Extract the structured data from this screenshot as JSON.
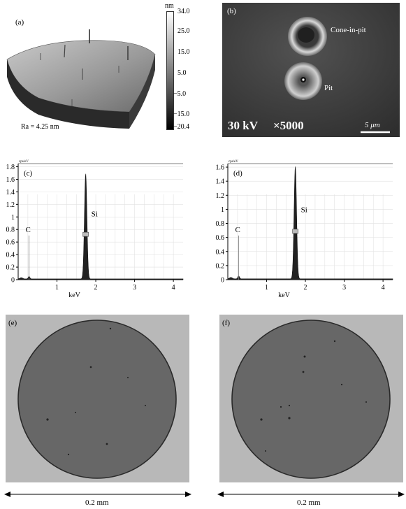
{
  "panels": {
    "a": {
      "label": "(a)",
      "ra": "Ra = 4.25 nm",
      "colorbar": {
        "unit": "nm",
        "ticks": [
          "34.0",
          "25.0",
          "15.0",
          "5.0",
          "−5.0",
          "−15.0",
          "−20.4"
        ]
      }
    },
    "b": {
      "label": "(b)",
      "cone_label": "Cone-in-pit",
      "pit_label": "Pit",
      "kv": "30 kV",
      "mag": "×5000",
      "scalebar": "5 μm"
    },
    "e": {
      "label": "(e)",
      "scale": "0.2 mm"
    },
    "f": {
      "label": "(f)",
      "scale": "0.2 mm"
    }
  },
  "chart_data": [
    {
      "type": "line",
      "label": "(c)",
      "unit_label": "cps/eV",
      "xlabel": "keV",
      "xlim": [
        0,
        4.25
      ],
      "ylim": [
        0,
        1.85
      ],
      "xticks": [
        1,
        2,
        3,
        4
      ],
      "yticks": [
        0,
        0.2,
        0.4,
        0.6,
        0.8,
        1.0,
        1.2,
        1.4,
        1.6,
        1.8
      ],
      "peaks": [
        {
          "element": "C",
          "x": 0.28,
          "y": 0.04,
          "label": "C"
        },
        {
          "element": "Si",
          "x": 1.74,
          "y": 1.68,
          "label": "Si"
        }
      ]
    },
    {
      "type": "line",
      "label": "(d)",
      "unit_label": "cps/eV",
      "xlabel": "keV",
      "xlim": [
        0,
        4.25
      ],
      "ylim": [
        0,
        1.65
      ],
      "xticks": [
        1,
        2,
        3,
        4
      ],
      "yticks": [
        0,
        0.2,
        0.4,
        0.6,
        0.8,
        1.0,
        1.2,
        1.4,
        1.6
      ],
      "peaks": [
        {
          "element": "C",
          "x": 0.28,
          "y": 0.04,
          "label": "C"
        },
        {
          "element": "Si",
          "x": 1.74,
          "y": 1.6,
          "label": "Si"
        }
      ]
    }
  ]
}
